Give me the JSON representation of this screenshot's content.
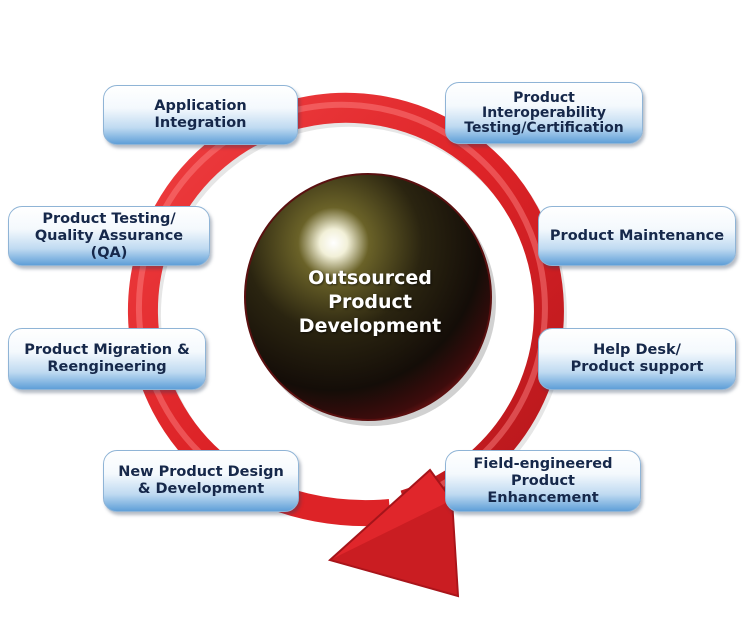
{
  "diagram": {
    "center": {
      "line1": "Outsourced Product",
      "line2": "Development"
    },
    "items": [
      {
        "id": "application-integration",
        "lines": [
          "Application",
          "Integration"
        ]
      },
      {
        "id": "interoperability-testing",
        "lines": [
          "Product",
          "Interoperability",
          "Testing/Certification"
        ]
      },
      {
        "id": "product-testing-qa",
        "lines": [
          "Product Testing/",
          "Quality Assurance (QA)"
        ]
      },
      {
        "id": "product-maintenance",
        "lines": [
          "Product Maintenance"
        ]
      },
      {
        "id": "product-migration",
        "lines": [
          "Product Migration &",
          "Reengineering"
        ]
      },
      {
        "id": "help-desk",
        "lines": [
          "Help Desk/",
          "Product support"
        ]
      },
      {
        "id": "new-product-design",
        "lines": [
          "New Product Design",
          "& Development"
        ]
      },
      {
        "id": "field-engineered",
        "lines": [
          "Field-engineered",
          "Product Enhancement"
        ]
      }
    ],
    "colors": {
      "arrow": "#e0262b",
      "arrow_dark": "#a5141a",
      "box_top": "#ffffff",
      "box_bottom": "#5f9fd8",
      "box_text": "#16284a",
      "sphere_core": "#3a3410",
      "sphere_rim": "#8a1a1c"
    }
  }
}
